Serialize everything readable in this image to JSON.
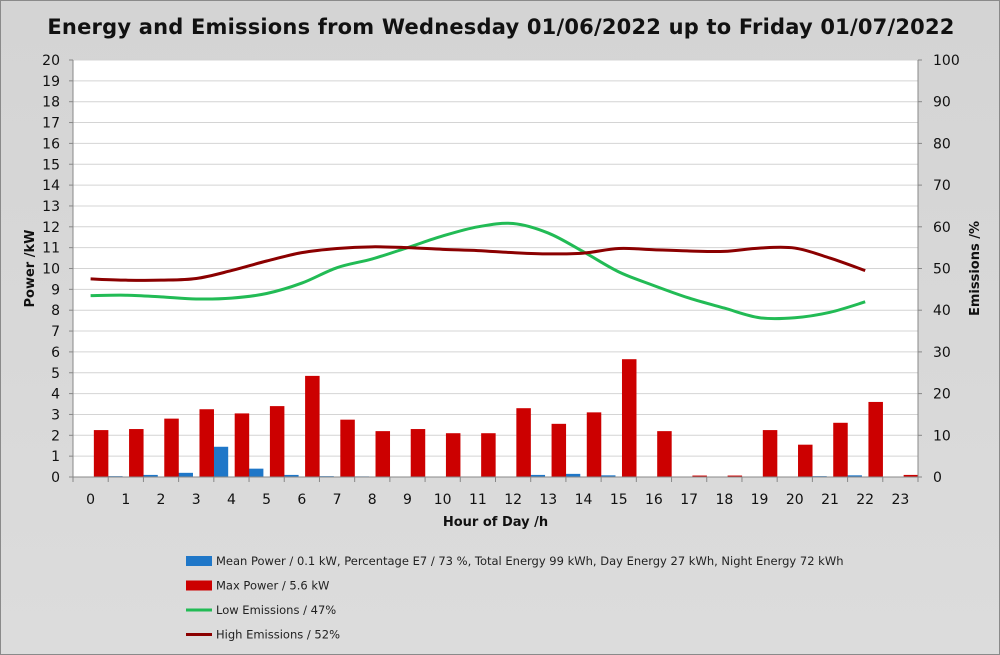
{
  "chart_data": {
    "type": "bar+line",
    "title": "Energy and Emissions from Wednesday 01/06/2022 up to Friday 01/07/2022",
    "xlabel": "Hour of Day /h",
    "ylabel_left": "Power /kW",
    "ylabel_right": "Emissions /%",
    "ylim_left": [
      0,
      20
    ],
    "ylim_right": [
      0,
      100
    ],
    "grid": true,
    "categories": [
      "0",
      "1",
      "2",
      "3",
      "4",
      "5",
      "6",
      "7",
      "8",
      "9",
      "10",
      "11",
      "12",
      "13",
      "14",
      "15",
      "16",
      "17",
      "18",
      "19",
      "20",
      "21",
      "22",
      "23"
    ],
    "bar_series": [
      {
        "name": "Mean Power / 0.1 kW, Percentage E7 / 73 %, Total Energy 99 kWh, Day Energy 27 kWh, Night Energy 72 kWh",
        "color": "#1f77c8",
        "values": [
          0,
          0.04,
          0.1,
          0.2,
          1.45,
          0.4,
          0.1,
          0.04,
          0.03,
          0,
          0,
          0,
          0,
          0.1,
          0.15,
          0.08,
          0,
          0,
          0,
          0,
          0,
          0.04,
          0.08,
          0
        ]
      },
      {
        "name": "Max Power / 5.6 kW",
        "color": "#cc0000",
        "values": [
          2.25,
          2.3,
          2.8,
          3.25,
          3.05,
          3.4,
          4.85,
          2.75,
          2.2,
          2.3,
          2.1,
          2.1,
          3.3,
          2.55,
          3.1,
          5.65,
          2.2,
          0.07,
          0.07,
          2.25,
          1.55,
          2.6,
          3.6,
          0.1
        ]
      }
    ],
    "line_series": [
      {
        "name": "Low Emissions / 47%",
        "color": "#22bb55",
        "axis": "right",
        "x": [
          0,
          1,
          2,
          3,
          4,
          5,
          6,
          7,
          8,
          9,
          10,
          11,
          12,
          13,
          14,
          15,
          16,
          17,
          18,
          19,
          20,
          21,
          22
        ],
        "values": [
          43.5,
          43.6,
          43.2,
          42.7,
          42.9,
          44.0,
          46.5,
          50.2,
          52.3,
          55.0,
          57.8,
          60.0,
          60.8,
          58.5,
          54.0,
          49.2,
          45.9,
          42.9,
          40.5,
          38.2,
          38.2,
          39.5,
          42.0
        ]
      },
      {
        "name": "High Emissions / 52%",
        "color": "#8b0000",
        "axis": "right",
        "x": [
          0,
          1,
          2,
          3,
          4,
          5,
          6,
          7,
          8,
          9,
          10,
          11,
          12,
          13,
          14,
          15,
          16,
          17,
          18,
          19,
          20,
          21,
          22
        ],
        "values": [
          47.5,
          47.2,
          47.2,
          47.6,
          49.5,
          51.8,
          53.8,
          54.8,
          55.2,
          55.0,
          54.6,
          54.3,
          53.8,
          53.5,
          53.7,
          54.8,
          54.5,
          54.2,
          54.1,
          54.9,
          54.9,
          52.5,
          49.5
        ]
      }
    ]
  }
}
